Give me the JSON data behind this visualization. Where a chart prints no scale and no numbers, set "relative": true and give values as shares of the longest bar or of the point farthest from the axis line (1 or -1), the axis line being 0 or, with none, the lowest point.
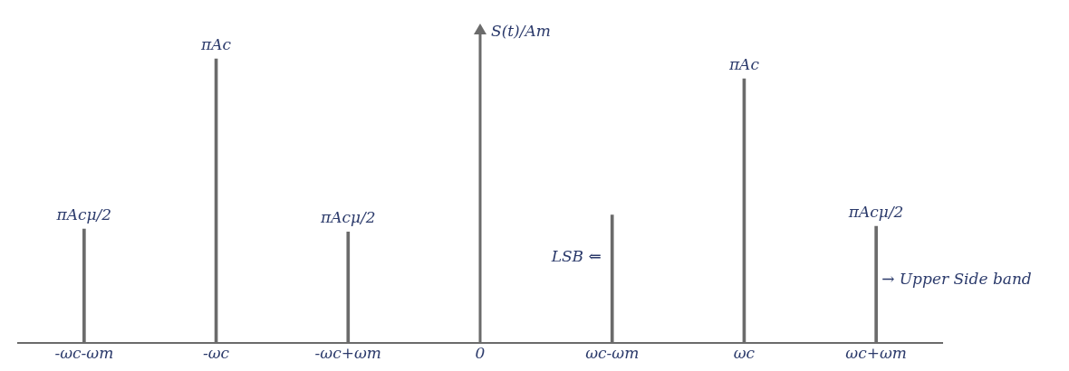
{
  "chart_data": {
    "type": "bar",
    "relative": true,
    "ylabel": "S(t)/Am",
    "grid": false,
    "legend": false,
    "ref_lines": [
      {
        "axis": "x",
        "value": "0",
        "color": "#6b6b6b"
      }
    ],
    "categories": [
      "-ωc-ωm",
      "-ωc",
      "-ωc+ωm",
      "0",
      "ωc-ωm",
      "ωc",
      "ωc+ωm"
    ],
    "series": [
      {
        "color": "#6b6b6b",
        "values": [
          0.4,
          1,
          0.39,
          null,
          0.45,
          0.93,
          0.41
        ]
      }
    ],
    "annotations": [
      {
        "text": "πAcμ/2",
        "x": "-ωc-ωm",
        "y": 0.4
      },
      {
        "text": "πAc",
        "x": "-ωc",
        "y": 1
      },
      {
        "text": "πAcμ/2",
        "x": "-ωc+ωm",
        "y": 0.39
      },
      {
        "text": "πAc",
        "x": "ωc",
        "y": 0.93
      },
      {
        "text": "πAcμ/2",
        "x": "ωc+ωm",
        "y": 0.41
      },
      {
        "text": "LSB ⇐",
        "x": "ωc-ωm",
        "y": 0.3
      },
      {
        "text": "→ Upper Side band",
        "x": "ωc+ωm",
        "y": 0.22
      }
    ]
  }
}
